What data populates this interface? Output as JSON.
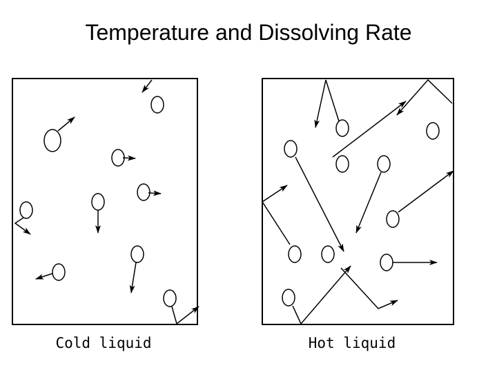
{
  "header": {
    "title": "Temperature and Dissolving Rate"
  },
  "panels": [
    {
      "label": "Cold liquid"
    },
    {
      "label": "Hot liquid"
    }
  ]
}
